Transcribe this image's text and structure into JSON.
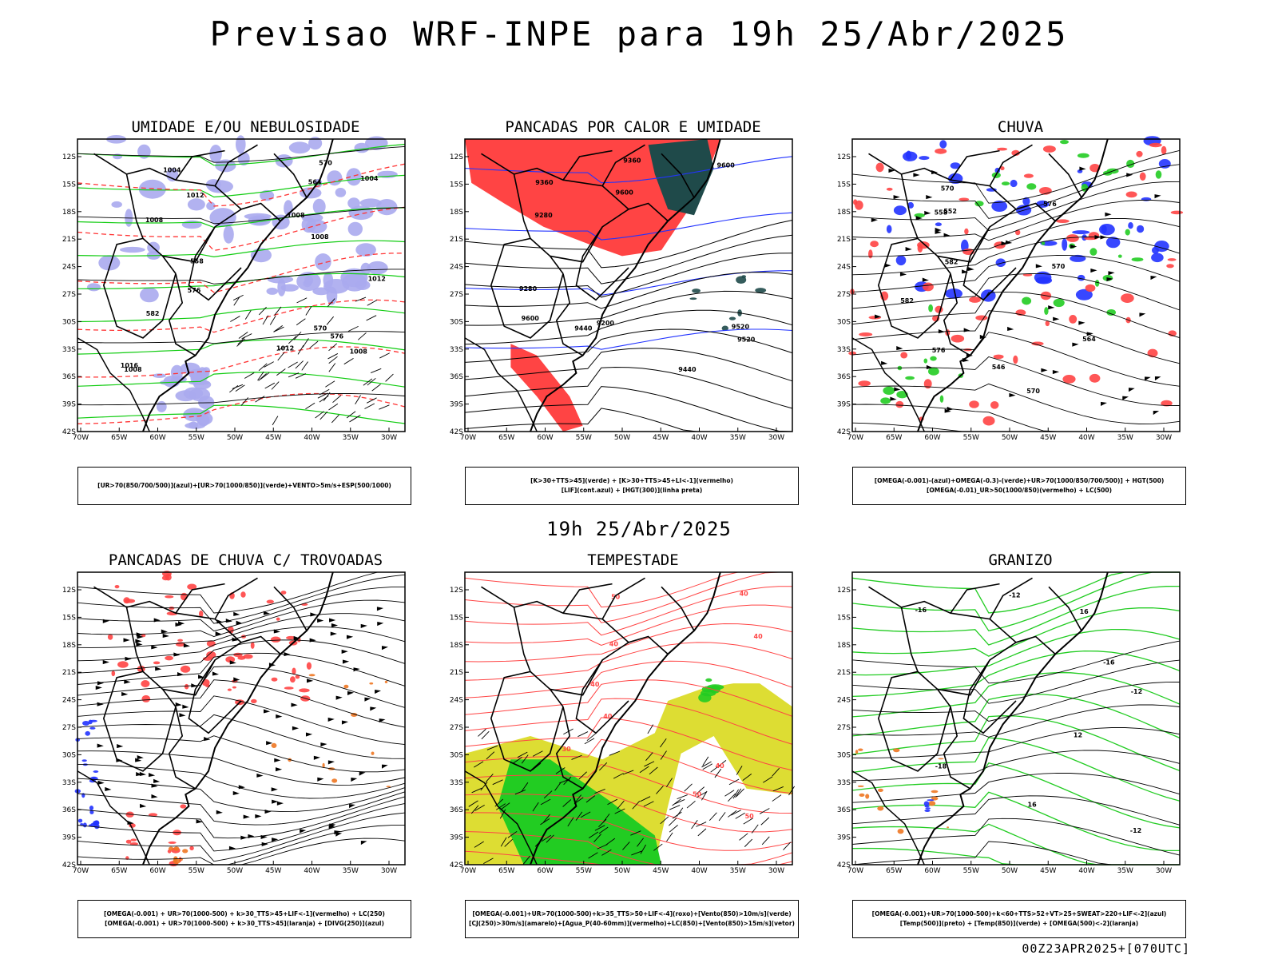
{
  "title": "Previsao WRF-INPE  para 19h 25/Abr/2025",
  "mid_caption": "19h 25/Abr/2025",
  "run_info": "00Z23APR2025+[070UTC]",
  "axis": {
    "lat_labels": [
      "12S",
      "15S",
      "18S",
      "21S",
      "24S",
      "27S",
      "30S",
      "33S",
      "36S",
      "39S",
      "42S"
    ],
    "lon_labels": [
      "70W",
      "65W",
      "60W",
      "55W",
      "50W",
      "45W",
      "40W",
      "35W",
      "30W"
    ]
  },
  "colors": {
    "rh_mid_blue": "#aaaaee",
    "rh_low_green": "#11cc11",
    "thickness_red": "#ff3333",
    "region_red": "#ff4444",
    "region_blue": "#2233ff",
    "region_green": "#22cc22",
    "region_teal": "#1f4a4a",
    "region_yellow": "#dddd33",
    "region_orange": "#ee7722"
  },
  "panels": [
    {
      "title": "UMIDADE E/OU NEBULOSIDADE",
      "legend": [
        "[UR>70(850/700/500)](azul)+[UR>70(1000/850)](verde)+VENTO>5m/s+ESP(500/1000)"
      ],
      "contour_labels": [
        "1008",
        "1008",
        "1008",
        "1012",
        "1008",
        "1012",
        "1016",
        "1008",
        "1004",
        "1004",
        "1012",
        "576",
        "576",
        "570",
        "582",
        "564",
        "558",
        "570"
      ]
    },
    {
      "title": "PANCADAS POR CALOR E UMIDADE",
      "legend": [
        "[K>30+TTS>45](verde) + [K>30+TTS>45+LI<-1](vermelho)",
        "[LIF](cont.azul) + [HGT(300)](linha preta)"
      ],
      "contour_labels": [
        "9600",
        "9600",
        "9600",
        "9520",
        "9520",
        "9440",
        "9440",
        "9360",
        "9360",
        "9280",
        "9280",
        "9200"
      ]
    },
    {
      "title": "CHUVA",
      "legend": [
        "[OMEGA(-0.001)-(azul)+OMEGA(-0.3)-(verde)+UR>70(1000/850/700/500)] + HGT(500)",
        "[OMEGA(-0.01)_UR>50(1000/850)(vermelho) + LC(500)"
      ],
      "contour_labels": [
        "582",
        "576",
        "570",
        "570",
        "576",
        "570",
        "564",
        "558",
        "552",
        "546",
        "582"
      ]
    },
    {
      "title": "PANCADAS DE CHUVA C/ TROVOADAS",
      "legend": [
        "[OMEGA(-0.001) + UR>70(1000-500) + k>30_TTS>45+LIF<-1](vermelho) + LC(250)",
        "[OMEGA(-0.001) + UR>70(1000-500) + k>30_TTS>45](laranja) + [DIVG(250)](azul)"
      ],
      "contour_labels": []
    },
    {
      "title": "TEMPESTADE",
      "legend": [
        "[OMEGA(-0.001)+UR>70(1000-500)+k>35_TTS>50+LIF<-4](roxo)+[Vento(850)>10m/s](verde)",
        "[CJ(250)>30m/s](amarelo)+[Agua_P(40-60mm)](vermelho)+LC(850)+[Vento(850)>15m/s](vetor)"
      ],
      "contour_labels": [
        "40",
        "50",
        "40",
        "50",
        "40",
        "40",
        "50",
        "40",
        "40",
        "30"
      ]
    },
    {
      "title": "GRANIZO",
      "legend": [
        "[OMEGA(-0.001)+UR>70(1000-500)+k<60+TTS>52+VT>25+SWEAT>220+LIF<-2](azul)",
        "[Temp(500)](preto) + [Temp(850)](verde) + [OMEGA(500)<-2](laranja)"
      ],
      "contour_labels": [
        "-12",
        "-12",
        "-12",
        "-16",
        "-16",
        "-18",
        "12",
        "16",
        "16"
      ]
    }
  ]
}
